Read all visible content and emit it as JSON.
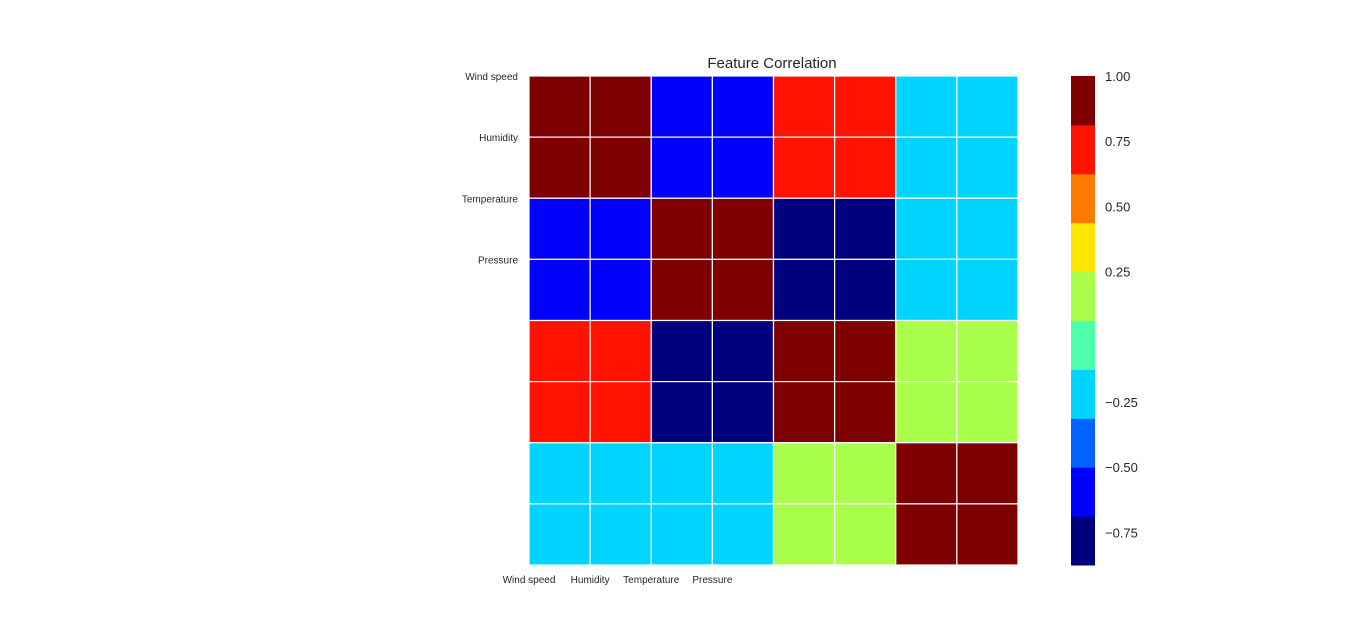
{
  "chart_data": {
    "type": "heatmap",
    "title": "Feature Correlation",
    "row_labels": [
      "Wind speed",
      "Humidity",
      "Temperature",
      "Pressure"
    ],
    "col_labels": [
      "Wind speed",
      "Humidity",
      "Temperature",
      "Pressure"
    ],
    "grid_size": 8,
    "values": [
      [
        1.0,
        1.0,
        -0.55,
        -0.55,
        0.8,
        0.8,
        -0.2,
        -0.2
      ],
      [
        1.0,
        1.0,
        -0.55,
        -0.55,
        0.8,
        0.8,
        -0.2,
        -0.2
      ],
      [
        -0.55,
        -0.55,
        1.0,
        1.0,
        -0.85,
        -0.85,
        -0.2,
        -0.2
      ],
      [
        -0.55,
        -0.55,
        1.0,
        1.0,
        -0.85,
        -0.85,
        -0.2,
        -0.2
      ],
      [
        0.8,
        0.8,
        -0.85,
        -0.85,
        1.0,
        1.0,
        0.2,
        0.2
      ],
      [
        0.8,
        0.8,
        -0.85,
        -0.85,
        1.0,
        1.0,
        0.2,
        0.2
      ],
      [
        -0.2,
        -0.2,
        -0.2,
        -0.2,
        0.2,
        0.2,
        1.0,
        1.0
      ],
      [
        -0.2,
        -0.2,
        -0.2,
        -0.2,
        0.2,
        0.2,
        1.0,
        1.0
      ]
    ],
    "colorbar": {
      "range": [
        -0.875,
        1.0
      ],
      "bins": 10,
      "colors": [
        "#00007f",
        "#0000ff",
        "#0063ff",
        "#00d4ff",
        "#4dffaa",
        "#aaff4d",
        "#ffe600",
        "#ff7b00",
        "#ff1300",
        "#7f0000"
      ],
      "ticks": [
        1.0,
        0.75,
        0.5,
        0.25,
        -0.25,
        -0.5,
        -0.75
      ],
      "tick_labels": [
        "1.00",
        "0.75",
        "0.50",
        "0.25",
        "−0.25",
        "−0.50",
        "−0.75"
      ]
    },
    "grid": true,
    "grid_color": "#ffffff",
    "colormap": "jet"
  }
}
